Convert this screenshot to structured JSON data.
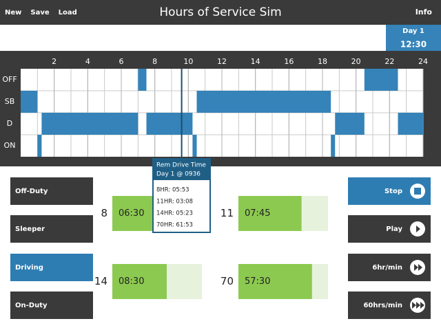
{
  "menu": [
    "New",
    "Save",
    "Load"
  ],
  "title": "Hours of Service Sim",
  "info": "Info",
  "clock": {
    "day": "Day 1",
    "time": "12:30"
  },
  "chart_data": {
    "type": "duty-log",
    "rows": [
      "OFF",
      "SB",
      "D",
      "ON"
    ],
    "xlim": [
      0,
      24
    ],
    "xticks": [
      2,
      4,
      6,
      8,
      10,
      12,
      14,
      16,
      18,
      20,
      22,
      24
    ],
    "grid": true,
    "color": "#3583b8",
    "segments": [
      {
        "row": 1,
        "start": 0,
        "end": 1
      },
      {
        "row": 3,
        "start": 1,
        "end": 1.25
      },
      {
        "row": 2,
        "start": 1.25,
        "end": 7
      },
      {
        "row": 0,
        "start": 7,
        "end": 7.5
      },
      {
        "row": 2,
        "start": 7.5,
        "end": 10.25
      },
      {
        "row": 3,
        "start": 10.25,
        "end": 10.5
      },
      {
        "row": 1,
        "start": 10.5,
        "end": 18.5
      },
      {
        "row": 3,
        "start": 18.5,
        "end": 18.75
      },
      {
        "row": 2,
        "start": 18.75,
        "end": 20.5
      },
      {
        "row": 0,
        "start": 20.5,
        "end": 22.5
      },
      {
        "row": 2,
        "start": 22.5,
        "end": 24
      }
    ],
    "cursor": 9.6
  },
  "tooltip": {
    "title": "Rem Drive Time",
    "subtitle": "Day 1 @ 0936",
    "lines": [
      "8HR: 05:53",
      "11HR: 03:08",
      "14HR: 05:23",
      "70HR: 61:53"
    ]
  },
  "status_buttons": {
    "items": [
      "Off-Duty",
      "Sleeper",
      "Driving",
      "On-Duty"
    ],
    "active": 2
  },
  "gauges": [
    {
      "limit": 8,
      "used": 6.5,
      "label": "06:30"
    },
    {
      "limit": 11,
      "used": 7.75,
      "label": "07:45"
    },
    {
      "limit": 14,
      "used": 8.5,
      "label": "08:30"
    },
    {
      "limit": 70,
      "used": 57.5,
      "label": "57:30"
    }
  ],
  "controls": {
    "items": [
      "Stop",
      "Play",
      "6hr/min",
      "60hrs/min"
    ],
    "active": 0
  }
}
